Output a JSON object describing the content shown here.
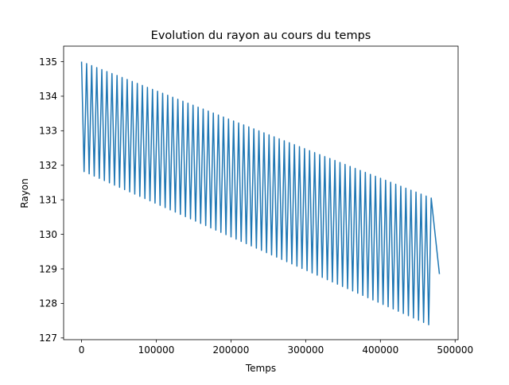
{
  "chart_data": {
    "type": "line",
    "title": "Evolution du rayon au cours du temps",
    "xlabel": "Temps",
    "ylabel": "Rayon",
    "xlim": [
      -24000,
      504000
    ],
    "ylim": [
      126.95,
      135.45
    ],
    "x_ticks": [
      {
        "value": 0,
        "label": "0"
      },
      {
        "value": 100000,
        "label": "100000"
      },
      {
        "value": 200000,
        "label": "200000"
      },
      {
        "value": 300000,
        "label": "300000"
      },
      {
        "value": 400000,
        "label": "400000"
      },
      {
        "value": 500000,
        "label": "500000"
      }
    ],
    "y_ticks": [
      {
        "value": 127,
        "label": "127"
      },
      {
        "value": 128,
        "label": "128"
      },
      {
        "value": 129,
        "label": "129"
      },
      {
        "value": 130,
        "label": "130"
      },
      {
        "value": 131,
        "label": "131"
      },
      {
        "value": 132,
        "label": "132"
      },
      {
        "value": 133,
        "label": "133"
      },
      {
        "value": 134,
        "label": "134"
      },
      {
        "value": 135,
        "label": "135"
      }
    ],
    "grid": false,
    "legend": "none",
    "series": [
      {
        "color": "#1f77b4",
        "oscillation": {
          "x_start": 0,
          "x_end": 468000,
          "cycles": 69,
          "upper_start": 135.0,
          "upper_end": 131.05,
          "lower_start": 131.85,
          "lower_end": 127.35
        },
        "points": [
          {
            "x": 0,
            "y": 135.0
          },
          {
            "x": 468000,
            "y": 131.05
          },
          {
            "x": 479000,
            "y": 128.85
          }
        ]
      }
    ]
  }
}
